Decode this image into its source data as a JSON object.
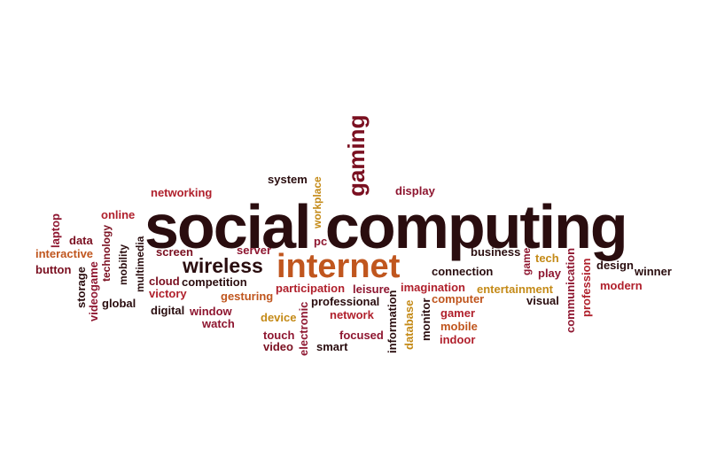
{
  "colors": {
    "dark": "#2a0d0f",
    "maroon": "#7a0f20",
    "red": "#b0202c",
    "orange": "#c0561e",
    "gold": "#c48a17",
    "crimson": "#8e1630"
  },
  "words": {
    "social_computing": "social computing",
    "internet": "internet",
    "wireless": "wireless",
    "gaming": "gaming",
    "system": "system",
    "networking": "networking",
    "workplace": "workplace",
    "display": "display",
    "online": "online",
    "laptop": "laptop",
    "data": "data",
    "interactive": "interactive",
    "button": "button",
    "technology": "technology",
    "mobility": "mobility",
    "storage": "storage",
    "videogame": "videogame",
    "multimedia": "multimedia",
    "global": "global",
    "screen": "screen",
    "cloud": "cloud",
    "competition": "competition",
    "victory": "victory",
    "digital": "digital",
    "window": "window",
    "watch": "watch",
    "server": "server",
    "gesturing": "gesturing",
    "pc": "pc",
    "participation": "participation",
    "professional": "professional",
    "device": "device",
    "touch": "touch",
    "video": "video",
    "electronic": "electronic",
    "network": "network",
    "focused": "focused",
    "smart": "smart",
    "leisure": "leisure",
    "information": "information",
    "imagination": "imagination",
    "database": "database",
    "monitor": "monitor",
    "computer": "computer",
    "gamer": "gamer",
    "mobile": "mobile",
    "indoor": "indoor",
    "connection": "connection",
    "business": "business",
    "game": "game",
    "tech": "tech",
    "play": "play",
    "entertainment": "entertainment",
    "visual": "visual",
    "communication": "communication",
    "profession": "profession",
    "design": "design",
    "winner": "winner",
    "modern": "modern"
  }
}
